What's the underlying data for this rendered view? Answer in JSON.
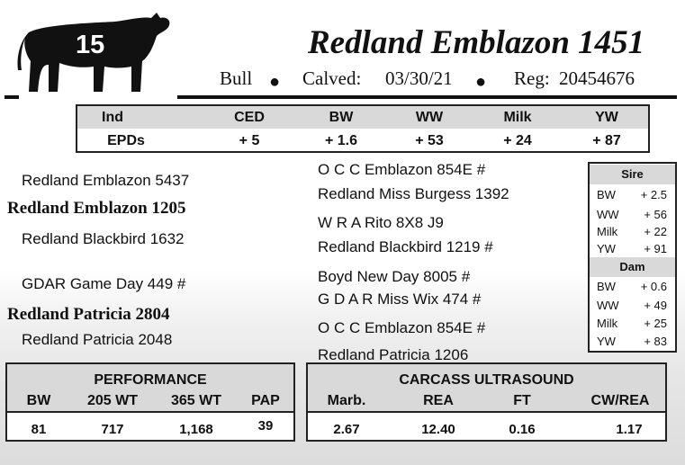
{
  "header": {
    "lot_number": "15",
    "name": "Redland Emblazon 1451",
    "sex": "Bull",
    "calved_label": "Calved:",
    "calved_date": "03/30/21",
    "reg_label": "Reg:",
    "reg_number": "20454676",
    "separator": "●"
  },
  "epds": {
    "row_label_top": "Ind",
    "row_label_bottom": "EPDs",
    "columns": [
      "CED",
      "BW",
      "WW",
      "Milk",
      "YW"
    ],
    "values": [
      "+ 5",
      "+ 1.6",
      "+ 53",
      "+ 24",
      "+ 87"
    ]
  },
  "pedigree": {
    "sire": "Redland Emblazon 1205",
    "sire_sire": "Redland Emblazon 5437",
    "sire_dam": "Redland Blackbird 1632",
    "sire_sire_sire": "O C C Emblazon 854E #",
    "sire_sire_dam": "Redland Miss Burgess 1392",
    "sire_dam_sire": "W R A Rito 8X8 J9",
    "sire_dam_dam": "Redland Blackbird 1219 #",
    "dam": "Redland Patricia 2804",
    "dam_sire": "GDAR Game Day 449 #",
    "dam_dam": "Redland Patricia 2048",
    "dam_sire_sire": "Boyd New Day 8005 #",
    "dam_sire_dam": "G D A R Miss Wix 474 #",
    "dam_dam_sire": "O C C Emblazon 854E #",
    "dam_dam_dam": "Redland Patricia 1206"
  },
  "sire_epds": {
    "title": "Sire",
    "rows": [
      {
        "label": "BW",
        "value": "+ 2.5"
      },
      {
        "label": "WW",
        "value": "+ 56"
      },
      {
        "label": "Milk",
        "value": "+ 22"
      },
      {
        "label": "YW",
        "value": "+ 91"
      }
    ]
  },
  "dam_epds": {
    "title": "Dam",
    "rows": [
      {
        "label": "BW",
        "value": "+ 0.6"
      },
      {
        "label": "WW",
        "value": "+ 49"
      },
      {
        "label": "Milk",
        "value": "+ 25"
      },
      {
        "label": "YW",
        "value": "+ 83"
      }
    ]
  },
  "performance": {
    "title": "PERFORMANCE",
    "columns": [
      "BW",
      "205 WT",
      "365 WT",
      "PAP"
    ],
    "values": [
      "81",
      "717",
      "1,168",
      "39"
    ]
  },
  "carcass": {
    "title": "CARCASS ULTRASOUND",
    "columns": [
      "Marb.",
      "REA",
      "FT",
      "CW/REA"
    ],
    "values": [
      "2.67",
      "12.40",
      "0.16",
      "1.17"
    ]
  },
  "icons": {
    "bull": "bull-silhouette-icon"
  },
  "colors": {
    "header_shade": "#d9d9d9",
    "ink": "#111111"
  }
}
